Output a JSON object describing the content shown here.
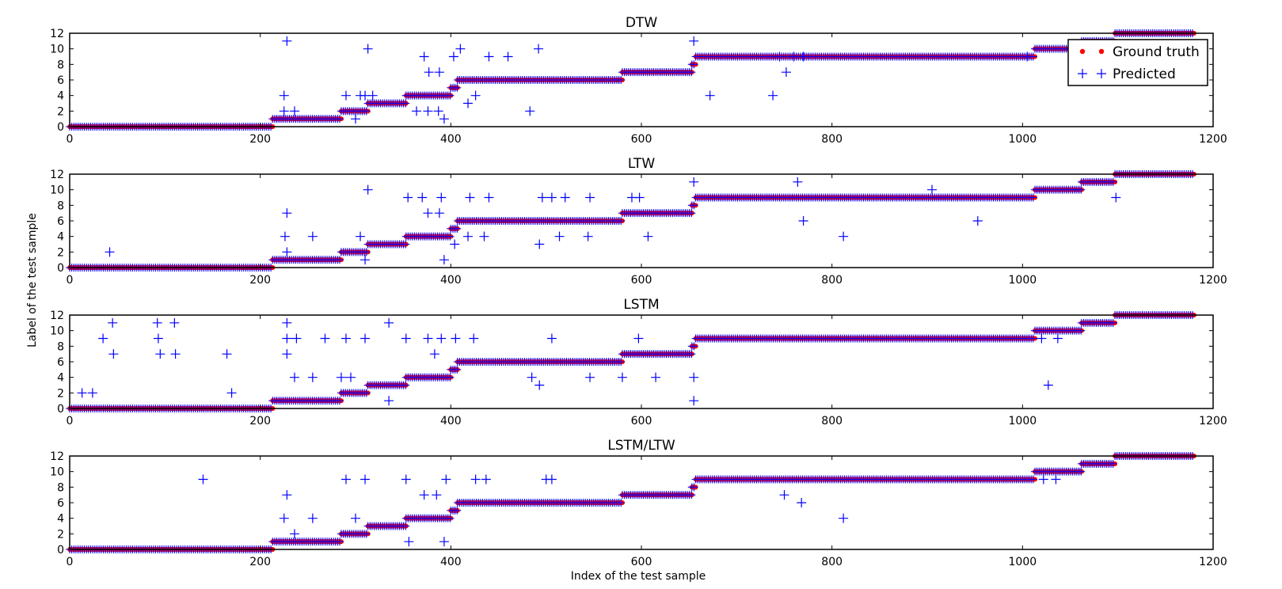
{
  "figure": {
    "xlabel": "Index of the test sample",
    "ylabel": "Label of the test sample"
  },
  "legend": {
    "location": "top-right of first panel",
    "entries": [
      {
        "label": "Ground truth",
        "color": "#ff0000",
        "marker": "dot"
      },
      {
        "label": "Predicted",
        "color": "#0000ff",
        "marker": "plus"
      }
    ]
  },
  "colors": {
    "ground_truth": "#ff0000",
    "predicted": "#0000ff",
    "axes": "#000000"
  },
  "chart_data": [
    {
      "type": "scatter",
      "title": "DTW",
      "xlim": [
        0,
        1200
      ],
      "ylim": [
        0,
        12
      ],
      "xticks": [
        0,
        200,
        400,
        600,
        800,
        1000,
        1200
      ],
      "yticks": [
        0,
        2,
        4,
        6,
        8,
        10,
        12
      ],
      "ground_truth_segments": [
        [
          0,
          213,
          0
        ],
        [
          213,
          285,
          1
        ],
        [
          285,
          313,
          2
        ],
        [
          313,
          353,
          3
        ],
        [
          353,
          400,
          4
        ],
        [
          400,
          407,
          5
        ],
        [
          407,
          580,
          6
        ],
        [
          580,
          653,
          7
        ],
        [
          653,
          657,
          8
        ],
        [
          657,
          1013,
          9
        ],
        [
          1013,
          1062,
          10
        ],
        [
          1062,
          1097,
          11
        ],
        [
          1097,
          1180,
          12
        ]
      ],
      "predicted_outliers": [
        [
          228,
          11
        ],
        [
          313,
          10
        ],
        [
          410,
          10
        ],
        [
          492,
          10
        ],
        [
          745,
          9
        ],
        [
          752,
          7
        ],
        [
          672,
          4
        ],
        [
          738,
          4
        ],
        [
          483,
          2
        ],
        [
          418,
          3
        ],
        [
          426,
          4
        ],
        [
          403,
          9
        ],
        [
          440,
          9
        ],
        [
          460,
          9
        ],
        [
          372,
          9
        ],
        [
          377,
          7
        ],
        [
          388,
          7
        ],
        [
          225,
          2
        ],
        [
          236,
          2
        ],
        [
          225,
          4
        ],
        [
          305,
          4
        ],
        [
          318,
          4
        ],
        [
          300,
          1
        ],
        [
          364,
          2
        ],
        [
          376,
          2
        ],
        [
          387,
          2
        ],
        [
          393,
          1
        ],
        [
          655,
          11
        ],
        [
          290,
          4
        ],
        [
          310,
          4
        ],
        [
          760,
          9
        ],
        [
          770,
          9
        ],
        [
          1005,
          9
        ]
      ]
    },
    {
      "type": "scatter",
      "title": "LTW",
      "xlim": [
        0,
        1200
      ],
      "ylim": [
        0,
        12
      ],
      "xticks": [
        0,
        200,
        400,
        600,
        800,
        1000,
        1200
      ],
      "yticks": [
        0,
        2,
        4,
        6,
        8,
        10,
        12
      ],
      "ground_truth_segments": [
        [
          0,
          213,
          0
        ],
        [
          213,
          285,
          1
        ],
        [
          285,
          313,
          2
        ],
        [
          313,
          353,
          3
        ],
        [
          353,
          400,
          4
        ],
        [
          400,
          407,
          5
        ],
        [
          407,
          580,
          6
        ],
        [
          580,
          653,
          7
        ],
        [
          653,
          657,
          8
        ],
        [
          657,
          1013,
          9
        ],
        [
          1013,
          1062,
          10
        ],
        [
          1062,
          1097,
          11
        ],
        [
          1097,
          1180,
          12
        ]
      ],
      "predicted_outliers": [
        [
          42,
          2
        ],
        [
          313,
          10
        ],
        [
          228,
          7
        ],
        [
          226,
          4
        ],
        [
          228,
          2
        ],
        [
          255,
          4
        ],
        [
          305,
          4
        ],
        [
          310,
          1
        ],
        [
          355,
          9
        ],
        [
          370,
          9
        ],
        [
          390,
          9
        ],
        [
          376,
          7
        ],
        [
          388,
          7
        ],
        [
          393,
          1
        ],
        [
          404,
          3
        ],
        [
          418,
          4
        ],
        [
          435,
          4
        ],
        [
          420,
          9
        ],
        [
          440,
          9
        ],
        [
          496,
          9
        ],
        [
          506,
          9
        ],
        [
          520,
          9
        ],
        [
          546,
          9
        ],
        [
          590,
          9
        ],
        [
          598,
          9
        ],
        [
          493,
          3
        ],
        [
          514,
          4
        ],
        [
          544,
          4
        ],
        [
          607,
          4
        ],
        [
          655,
          11
        ],
        [
          764,
          11
        ],
        [
          770,
          6
        ],
        [
          812,
          4
        ],
        [
          905,
          10
        ],
        [
          953,
          6
        ],
        [
          1098,
          9
        ]
      ]
    },
    {
      "type": "scatter",
      "title": "LSTM",
      "xlim": [
        0,
        1200
      ],
      "ylim": [
        0,
        12
      ],
      "xticks": [
        0,
        200,
        400,
        600,
        800,
        1000,
        1200
      ],
      "yticks": [
        0,
        2,
        4,
        6,
        8,
        10,
        12
      ],
      "ground_truth_segments": [
        [
          0,
          213,
          0
        ],
        [
          213,
          285,
          1
        ],
        [
          285,
          313,
          2
        ],
        [
          313,
          353,
          3
        ],
        [
          353,
          400,
          4
        ],
        [
          400,
          407,
          5
        ],
        [
          407,
          580,
          6
        ],
        [
          580,
          653,
          7
        ],
        [
          653,
          657,
          8
        ],
        [
          657,
          1013,
          9
        ],
        [
          1013,
          1062,
          10
        ],
        [
          1062,
          1097,
          11
        ],
        [
          1097,
          1180,
          12
        ]
      ],
      "predicted_outliers": [
        [
          13,
          2
        ],
        [
          24,
          2
        ],
        [
          35,
          9
        ],
        [
          45,
          11
        ],
        [
          46,
          7
        ],
        [
          92,
          11
        ],
        [
          93,
          9
        ],
        [
          95,
          7
        ],
        [
          110,
          11
        ],
        [
          111,
          7
        ],
        [
          165,
          7
        ],
        [
          170,
          2
        ],
        [
          228,
          11
        ],
        [
          228,
          9
        ],
        [
          228,
          7
        ],
        [
          236,
          4
        ],
        [
          238,
          9
        ],
        [
          255,
          4
        ],
        [
          268,
          9
        ],
        [
          285,
          4
        ],
        [
          290,
          9
        ],
        [
          295,
          4
        ],
        [
          310,
          9
        ],
        [
          335,
          11
        ],
        [
          335,
          1
        ],
        [
          353,
          9
        ],
        [
          376,
          9
        ],
        [
          383,
          7
        ],
        [
          390,
          9
        ],
        [
          405,
          9
        ],
        [
          424,
          9
        ],
        [
          485,
          4
        ],
        [
          493,
          3
        ],
        [
          506,
          9
        ],
        [
          546,
          4
        ],
        [
          580,
          4
        ],
        [
          597,
          9
        ],
        [
          615,
          4
        ],
        [
          655,
          4
        ],
        [
          655,
          1
        ],
        [
          1020,
          9
        ],
        [
          1027,
          3
        ],
        [
          1037,
          9
        ]
      ]
    },
    {
      "type": "scatter",
      "title": "LSTM/LTW",
      "xlim": [
        0,
        1200
      ],
      "ylim": [
        0,
        12
      ],
      "xticks": [
        0,
        200,
        400,
        600,
        800,
        1000,
        1200
      ],
      "yticks": [
        0,
        2,
        4,
        6,
        8,
        10,
        12
      ],
      "ground_truth_segments": [
        [
          0,
          213,
          0
        ],
        [
          213,
          285,
          1
        ],
        [
          285,
          313,
          2
        ],
        [
          313,
          353,
          3
        ],
        [
          353,
          400,
          4
        ],
        [
          400,
          407,
          5
        ],
        [
          407,
          580,
          6
        ],
        [
          580,
          653,
          7
        ],
        [
          653,
          657,
          8
        ],
        [
          657,
          1013,
          9
        ],
        [
          1013,
          1062,
          10
        ],
        [
          1062,
          1097,
          11
        ],
        [
          1097,
          1180,
          12
        ]
      ],
      "predicted_outliers": [
        [
          140,
          9
        ],
        [
          228,
          7
        ],
        [
          225,
          4
        ],
        [
          236,
          2
        ],
        [
          255,
          4
        ],
        [
          290,
          9
        ],
        [
          300,
          4
        ],
        [
          310,
          9
        ],
        [
          353,
          9
        ],
        [
          356,
          1
        ],
        [
          372,
          7
        ],
        [
          385,
          7
        ],
        [
          395,
          9
        ],
        [
          393,
          1
        ],
        [
          426,
          9
        ],
        [
          437,
          9
        ],
        [
          500,
          9
        ],
        [
          506,
          9
        ],
        [
          750,
          7
        ],
        [
          768,
          6
        ],
        [
          812,
          4
        ],
        [
          1022,
          9
        ],
        [
          1035,
          9
        ]
      ]
    }
  ]
}
